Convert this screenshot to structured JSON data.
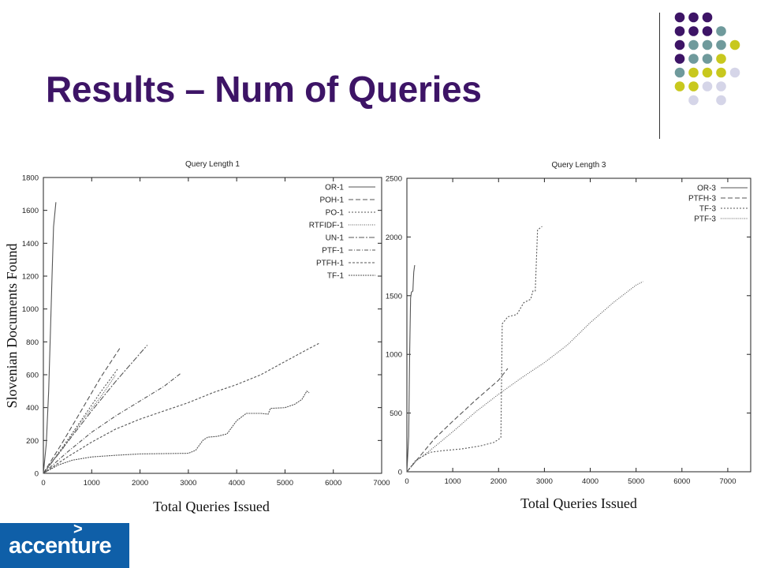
{
  "slide": {
    "title": "Results – Num of Queries",
    "brand": {
      "name": "accenture",
      "mark": ">",
      "color": "#0f5fa8"
    }
  },
  "colors": {
    "title": "#3d1466",
    "dot_purple": "#3d1466",
    "dot_teal": "#6f9a9c",
    "dot_lime": "#c8c81e",
    "dot_lavender": "#d5d5e8"
  },
  "chart_data": [
    {
      "type": "line",
      "title": "Query Length 1",
      "xlabel": "Total Queries Issued",
      "ylabel": "Slovenian Documents Found",
      "xlim": [
        0,
        7000
      ],
      "ylim": [
        0,
        1800
      ],
      "xticks": [
        0,
        1000,
        2000,
        3000,
        4000,
        5000,
        6000,
        7000
      ],
      "yticks": [
        0,
        200,
        400,
        600,
        800,
        1000,
        1200,
        1400,
        1600,
        1800
      ],
      "legend_position": "top-right",
      "series": [
        {
          "name": "OR-1",
          "dash": "",
          "points": [
            [
              0,
              0
            ],
            [
              60,
              180
            ],
            [
              110,
              500
            ],
            [
              150,
              900
            ],
            [
              180,
              1200
            ],
            [
              210,
              1500
            ],
            [
              260,
              1650
            ]
          ]
        },
        {
          "name": "POH-1",
          "dash": "6,3",
          "points": [
            [
              0,
              0
            ],
            [
              400,
              190
            ],
            [
              800,
              390
            ],
            [
              1200,
              590
            ],
            [
              1580,
              760
            ]
          ]
        },
        {
          "name": "PO-1",
          "dash": "2,2",
          "points": [
            [
              0,
              0
            ],
            [
              400,
              160
            ],
            [
              800,
              330
            ],
            [
              1200,
              500
            ],
            [
              1550,
              640
            ]
          ]
        },
        {
          "name": "RTFIDF-1",
          "dash": "1,1.5",
          "points": [
            [
              0,
              0
            ],
            [
              400,
              150
            ],
            [
              800,
              320
            ],
            [
              1200,
              470
            ],
            [
              1500,
              600
            ]
          ]
        },
        {
          "name": "UN-1",
          "dash": "7,2,2,2",
          "points": [
            [
              0,
              0
            ],
            [
              500,
              190
            ],
            [
              1000,
              380
            ],
            [
              1500,
              560
            ],
            [
              2150,
              780
            ]
          ]
        },
        {
          "name": "PTF-1",
          "dash": "5,2,1,2",
          "points": [
            [
              0,
              0
            ],
            [
              500,
              130
            ],
            [
              1000,
              250
            ],
            [
              1500,
              350
            ],
            [
              2000,
              440
            ],
            [
              2500,
              530
            ],
            [
              2850,
              610
            ]
          ]
        },
        {
          "name": "PTFH-1",
          "dash": "3,2",
          "points": [
            [
              0,
              0
            ],
            [
              500,
              100
            ],
            [
              1000,
              190
            ],
            [
              1500,
              270
            ],
            [
              2000,
              330
            ],
            [
              2500,
              380
            ],
            [
              3000,
              430
            ],
            [
              3500,
              490
            ],
            [
              4000,
              540
            ],
            [
              4500,
              600
            ],
            [
              5000,
              680
            ],
            [
              5500,
              760
            ],
            [
              5700,
              790
            ]
          ]
        },
        {
          "name": "TF-1",
          "dash": "2,1",
          "points": [
            [
              0,
              0
            ],
            [
              300,
              50
            ],
            [
              600,
              80
            ],
            [
              1000,
              100
            ],
            [
              1500,
              110
            ],
            [
              2000,
              118
            ],
            [
              2500,
              120
            ],
            [
              3000,
              122
            ],
            [
              3150,
              140
            ],
            [
              3300,
              200
            ],
            [
              3400,
              220
            ],
            [
              3600,
              225
            ],
            [
              3800,
              240
            ],
            [
              4000,
              320
            ],
            [
              4200,
              365
            ],
            [
              4500,
              365
            ],
            [
              4650,
              360
            ],
            [
              4700,
              395
            ],
            [
              5000,
              400
            ],
            [
              5200,
              420
            ],
            [
              5350,
              450
            ],
            [
              5450,
              500
            ],
            [
              5500,
              490
            ]
          ]
        }
      ]
    },
    {
      "type": "line",
      "title": "Query Length 3",
      "xlabel": "Total Queries Issued",
      "ylabel": "",
      "xlim": [
        0,
        7500
      ],
      "ylim": [
        0,
        2500
      ],
      "xticks": [
        0,
        1000,
        2000,
        3000,
        4000,
        5000,
        6000,
        7000
      ],
      "yticks": [
        0,
        500,
        1000,
        1500,
        2000,
        2500
      ],
      "legend_position": "top-right",
      "series": [
        {
          "name": "OR-3",
          "dash": "",
          "points": [
            [
              0,
              0
            ],
            [
              40,
              300
            ],
            [
              60,
              1000
            ],
            [
              80,
              1480
            ],
            [
              100,
              1530
            ],
            [
              130,
              1540
            ],
            [
              150,
              1700
            ],
            [
              170,
              1760
            ]
          ]
        },
        {
          "name": "PTFH-3",
          "dash": "6,3",
          "points": [
            [
              0,
              0
            ],
            [
              300,
              140
            ],
            [
              600,
              280
            ],
            [
              1000,
              430
            ],
            [
              1500,
              610
            ],
            [
              2000,
              780
            ],
            [
              2200,
              880
            ]
          ]
        },
        {
          "name": "TF-3",
          "dash": "2,2",
          "points": [
            [
              0,
              0
            ],
            [
              200,
              100
            ],
            [
              500,
              165
            ],
            [
              800,
              180
            ],
            [
              1200,
              195
            ],
            [
              1600,
              220
            ],
            [
              1900,
              250
            ],
            [
              2050,
              290
            ],
            [
              2080,
              1260
            ],
            [
              2200,
              1320
            ],
            [
              2400,
              1340
            ],
            [
              2550,
              1440
            ],
            [
              2700,
              1470
            ],
            [
              2750,
              1540
            ],
            [
              2800,
              1540
            ],
            [
              2850,
              2060
            ],
            [
              2950,
              2090
            ]
          ]
        },
        {
          "name": "PTF-3",
          "dash": "1,1.5",
          "points": [
            [
              0,
              0
            ],
            [
              200,
              90
            ],
            [
              500,
              180
            ],
            [
              1000,
              340
            ],
            [
              1500,
              510
            ],
            [
              2000,
              660
            ],
            [
              2500,
              800
            ],
            [
              3000,
              930
            ],
            [
              3500,
              1080
            ],
            [
              4000,
              1270
            ],
            [
              4500,
              1440
            ],
            [
              5000,
              1590
            ],
            [
              5150,
              1620
            ]
          ]
        }
      ]
    }
  ]
}
